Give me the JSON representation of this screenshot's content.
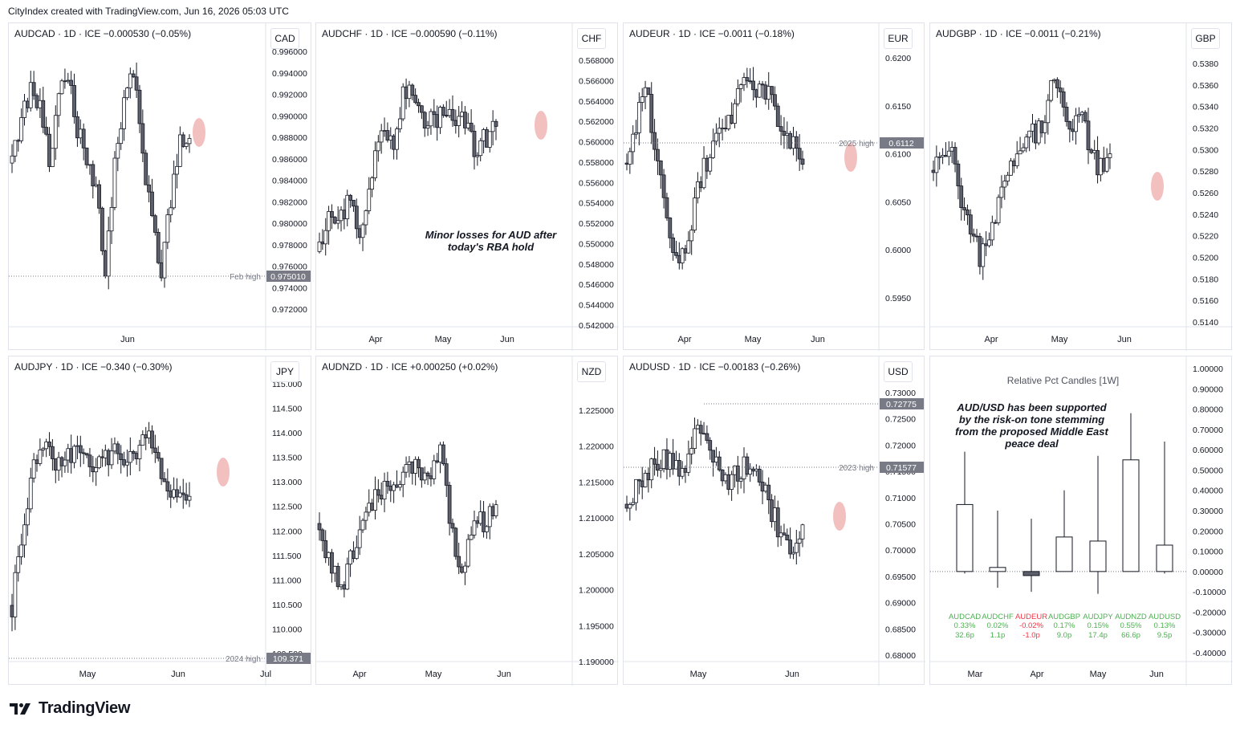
{
  "header": {
    "text": "CityIndex created with TradingView.com, Jun 16, 2026 05:03 UTC"
  },
  "footer": {
    "brand": "TradingView"
  },
  "panels": [
    {
      "id": "audcad",
      "title": "AUDCAD · 1D · ICE  −0.000530 (−0.05%)",
      "currency": "CAD",
      "ticks": [
        "0.996000",
        "0.994000",
        "0.992000",
        "0.990000",
        "0.988000",
        "0.986000",
        "0.984000",
        "0.982000",
        "0.980000",
        "0.978000",
        "0.976000",
        "0.974000",
        "0.972000"
      ],
      "xlabels": [
        "Jun"
      ],
      "level": {
        "name": "Feb high",
        "value": "0.975010"
      },
      "annotation": ""
    },
    {
      "id": "audchf",
      "title": "AUDCHF · 1D · ICE  −0.000590 (−0.11%)",
      "currency": "CHF",
      "ticks": [
        "0.568000",
        "0.566000",
        "0.564000",
        "0.562000",
        "0.560000",
        "0.558000",
        "0.556000",
        "0.554000",
        "0.552000",
        "0.550000",
        "0.548000",
        "0.546000",
        "0.544000",
        "0.542000"
      ],
      "xlabels": [
        "Apr",
        "May",
        "Jun"
      ],
      "level": null,
      "annotation": "Minor losses for AUD after today's RBA hold"
    },
    {
      "id": "audeur",
      "title": "AUDEUR · 1D · ICE  −0.0011 (−0.18%)",
      "currency": "EUR",
      "ticks": [
        "0.6200",
        "0.6150",
        "0.6100",
        "0.6050",
        "0.6000",
        "0.5950"
      ],
      "xlabels": [
        "Apr",
        "May",
        "Jun"
      ],
      "level": {
        "name": "2025 high",
        "value": "0.6112"
      },
      "annotation": ""
    },
    {
      "id": "audgbp",
      "title": "AUDGBP · 1D · ICE  −0.0011 (−0.21%)",
      "currency": "GBP",
      "ticks": [
        "0.5380",
        "0.5360",
        "0.5340",
        "0.5320",
        "0.5300",
        "0.5280",
        "0.5260",
        "0.5240",
        "0.5220",
        "0.5200",
        "0.5180",
        "0.5160",
        "0.5140"
      ],
      "xlabels": [
        "Apr",
        "May",
        "Jun"
      ],
      "level": null,
      "annotation": ""
    },
    {
      "id": "audjpy",
      "title": "AUDJPY · 1D · ICE  −0.340 (−0.30%)",
      "currency": "JPY",
      "ticks": [
        "115.000",
        "114.500",
        "114.000",
        "113.500",
        "113.000",
        "112.500",
        "112.000",
        "111.500",
        "111.000",
        "110.500",
        "110.000",
        "109.500"
      ],
      "xlabels": [
        "May",
        "Jun",
        "Jul"
      ],
      "level": {
        "name": "2024 high",
        "value": "109.371"
      },
      "annotation": ""
    },
    {
      "id": "audnzd",
      "title": "AUDNZD · 1D · ICE  +0.000250 (+0.02%)",
      "currency": "NZD",
      "ticks": [
        "1.225000",
        "1.220000",
        "1.215000",
        "1.210000",
        "1.205000",
        "1.200000",
        "1.195000",
        "1.190000"
      ],
      "xlabels": [
        "Apr",
        "May",
        "Jun"
      ],
      "level": null,
      "annotation": ""
    },
    {
      "id": "audusd",
      "title": "AUDUSD · 1D · ICE  −0.00183 (−0.26%)",
      "currency": "USD",
      "ticks": [
        "0.73000",
        "0.72500",
        "0.72000",
        "0.71500",
        "0.71000",
        "0.70500",
        "0.70000",
        "0.69500",
        "0.69000",
        "0.68500",
        "0.68000"
      ],
      "xlabels": [
        "May",
        "Jun"
      ],
      "level": {
        "name": "2023 high",
        "value": "0.71577"
      },
      "level_top": "0.72775",
      "annotation": ""
    }
  ],
  "rel": {
    "title": "Relative Pct Candles [1W]",
    "annotation": "AUD/USD has been supported by the risk-on tone stemming from the proposed Middle East peace deal",
    "ticks": [
      "1.00000",
      "0.90000",
      "0.80000",
      "0.70000",
      "0.60000",
      "0.50000",
      "0.40000",
      "0.30000",
      "0.20000",
      "0.10000",
      "0.00000",
      "-0.10000",
      "-0.20000",
      "-0.30000",
      "-0.40000"
    ],
    "xlabels": [
      "Mar",
      "Apr",
      "May",
      "Jun"
    ]
  },
  "chart_data": [
    {
      "type": "candlestick",
      "symbol": "AUDCAD",
      "interval": "1D",
      "ylim": [
        0.971,
        0.9965
      ],
      "levels": [
        {
          "label": "Feb high",
          "value": 0.97501
        }
      ]
    },
    {
      "type": "candlestick",
      "symbol": "AUDCHF",
      "interval": "1D",
      "ylim": [
        0.5415,
        0.5685
      ]
    },
    {
      "type": "candlestick",
      "symbol": "AUDEUR",
      "interval": "1D",
      "ylim": [
        0.5935,
        0.6215
      ],
      "levels": [
        {
          "label": "2025 high",
          "value": 0.6112
        }
      ]
    },
    {
      "type": "candlestick",
      "symbol": "AUDGBP",
      "interval": "1D",
      "ylim": [
        0.5125,
        0.5395
      ]
    },
    {
      "type": "candlestick",
      "symbol": "AUDJPY",
      "interval": "1D",
      "ylim": [
        109.4,
        115.1
      ],
      "levels": [
        {
          "label": "2024 high",
          "value": 109.371
        }
      ]
    },
    {
      "type": "candlestick",
      "symbol": "AUDNZD",
      "interval": "1D",
      "ylim": [
        1.1895,
        1.229
      ]
    },
    {
      "type": "candlestick",
      "symbol": "AUDUSD",
      "interval": "1D",
      "ylim": [
        0.6795,
        0.7305
      ],
      "levels": [
        {
          "label": "2023 high",
          "value": 0.71577
        },
        {
          "value": 0.72775
        }
      ]
    },
    {
      "type": "candlestick",
      "title": "Relative Pct Candles [1W]",
      "ylim": [
        -0.42,
        1.02
      ],
      "categories": [
        "AUDCAD",
        "AUDCHF",
        "AUDEUR",
        "AUDGBP",
        "AUDJPY",
        "AUDNZD",
        "AUDUSD"
      ],
      "pct_labels": [
        "0.33%",
        "0.02%",
        "-0.02%",
        "0.17%",
        "0.15%",
        "0.55%",
        "0.13%"
      ],
      "pip_labels": [
        "32.6p",
        "1.1p",
        "-1.0p",
        "9.0p",
        "17.4p",
        "66.6p",
        "9.5p"
      ],
      "open": [
        0.0,
        0.0,
        0.0,
        0.0,
        0.0,
        0.0,
        0.0
      ],
      "close": [
        0.33,
        0.02,
        -0.02,
        0.17,
        0.15,
        0.55,
        0.13
      ],
      "high": [
        0.59,
        0.3,
        0.26,
        0.4,
        0.57,
        0.78,
        0.64
      ],
      "low": [
        -0.01,
        -0.08,
        -0.1,
        0.0,
        -0.11,
        0.0,
        -0.01
      ],
      "colors": [
        "#4caf50",
        "#4caf50",
        "#f23645",
        "#4caf50",
        "#4caf50",
        "#4caf50",
        "#4caf50"
      ]
    }
  ]
}
